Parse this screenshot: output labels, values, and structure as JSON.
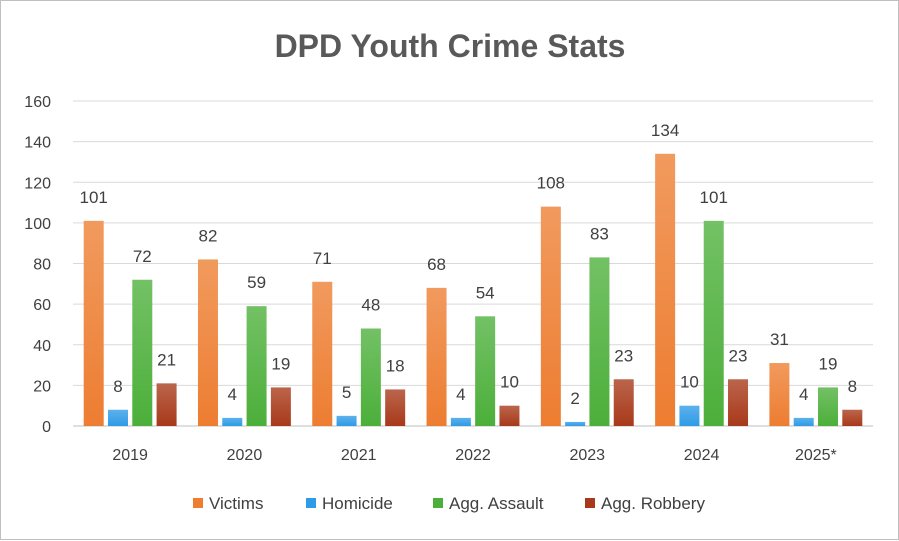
{
  "chart_data": {
    "type": "bar",
    "title": "DPD Youth Crime Stats",
    "categories": [
      "2019",
      "2020",
      "2021",
      "2022",
      "2023",
      "2024",
      "2025*"
    ],
    "series": [
      {
        "name": "Victims",
        "color": "#ED7D31",
        "values": [
          101,
          82,
          71,
          68,
          108,
          134,
          31
        ]
      },
      {
        "name": "Homicide",
        "color": "#2E9BE6",
        "values": [
          8,
          4,
          5,
          4,
          2,
          10,
          4
        ]
      },
      {
        "name": "Agg. Assault",
        "color": "#4CAF3A",
        "values": [
          72,
          59,
          48,
          54,
          83,
          101,
          19
        ]
      },
      {
        "name": "Agg. Robbery",
        "color": "#A8391A",
        "values": [
          21,
          19,
          18,
          10,
          23,
          23,
          8
        ]
      }
    ],
    "ylim": [
      0,
      160
    ],
    "yticks": [
      "0",
      "20",
      "40",
      "60",
      "80",
      "100",
      "120",
      "140",
      "160"
    ],
    "grid": true,
    "legend": "bottom",
    "data_labels": true
  }
}
